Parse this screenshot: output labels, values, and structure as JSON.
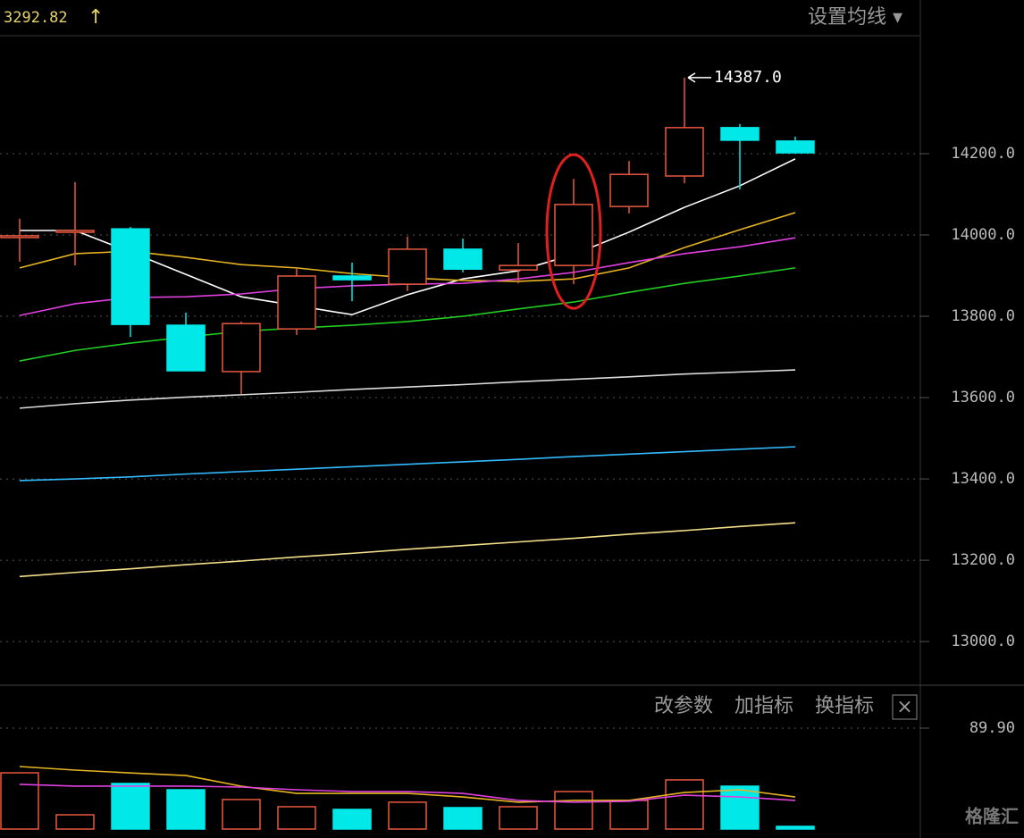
{
  "header": {
    "index_value": "3292.82",
    "arrow": "↑",
    "ma_setting": "设置均线 ▾"
  },
  "toolbar": {
    "edit_params": "改参数",
    "add_indicator": "加指标",
    "switch_indicator": "换指标",
    "close": "×"
  },
  "watermark": "格隆汇",
  "chart_data": [
    {
      "type": "candlestick",
      "ylim": [
        12897,
        14490
      ],
      "yticks": [
        {
          "value": 13000,
          "label": "13000.0"
        },
        {
          "value": 13200,
          "label": "13200.0"
        },
        {
          "value": 13400,
          "label": "13400.0"
        },
        {
          "value": 13600,
          "label": "13600.0"
        },
        {
          "value": 13800,
          "label": "13800.0"
        },
        {
          "value": 14000,
          "label": "14000.0"
        },
        {
          "value": 14200,
          "label": "14200.0"
        }
      ],
      "grid": true,
      "up_color": "#e8583f",
      "down_color": "#00e8e8",
      "open": [
        13994,
        14009,
        14015,
        13778,
        13664,
        13769,
        13899,
        13879,
        13965,
        13914,
        13925,
        14070,
        14145,
        14264,
        14231
      ],
      "high": [
        14040,
        14130,
        14020,
        13809,
        13787,
        13919,
        13932,
        13996,
        13991,
        13980,
        14138,
        14182,
        14387,
        14273,
        14242
      ],
      "low": [
        13934,
        13925,
        13749,
        13666,
        13609,
        13754,
        13837,
        13862,
        13908,
        13881,
        13879,
        14053,
        14127,
        14112,
        14202
      ],
      "close": [
        13998,
        14011,
        13780,
        13666,
        13782,
        13899,
        13890,
        13965,
        13916,
        13925,
        14075,
        14149,
        14264,
        14233,
        14202
      ],
      "annotation": {
        "label": "14387.0",
        "value": 14387
      },
      "series": [
        {
          "color": "#ffffff",
          "values": [
            14011,
            14011,
            13958,
            13903,
            13848,
            13826,
            13804,
            13853,
            13892,
            13912,
            13952,
            14007,
            14068,
            14121,
            14187
          ]
        },
        {
          "color": "#e6b422",
          "values": [
            13919,
            13954,
            13960,
            13945,
            13927,
            13919,
            13905,
            13895,
            13888,
            13886,
            13892,
            13919,
            13969,
            14013,
            14055
          ]
        },
        {
          "color": "#e040e0",
          "values": [
            13802,
            13831,
            13846,
            13848,
            13855,
            13868,
            13875,
            13879,
            13881,
            13892,
            13908,
            13932,
            13954,
            13971,
            13993
          ]
        },
        {
          "color": "#22cc22",
          "values": [
            13690,
            13716,
            13734,
            13749,
            13763,
            13771,
            13778,
            13787,
            13800,
            13818,
            13835,
            13859,
            13881,
            13899,
            13919
          ]
        },
        {
          "color": "#dddddd",
          "values": [
            13574,
            13585,
            13594,
            13601,
            13607,
            13613,
            13620,
            13626,
            13632,
            13639,
            13645,
            13651,
            13658,
            13663,
            13668
          ]
        },
        {
          "color": "#33bbff",
          "values": [
            13396,
            13400,
            13405,
            13412,
            13418,
            13424,
            13430,
            13436,
            13442,
            13448,
            13455,
            13461,
            13467,
            13473,
            13479
          ]
        },
        {
          "color": "#f5e08a",
          "values": [
            13160,
            13170,
            13179,
            13189,
            13198,
            13208,
            13217,
            13227,
            13236,
            13245,
            13254,
            13264,
            13273,
            13283,
            13292
          ]
        }
      ]
    },
    {
      "type": "bar",
      "ylim": [
        0,
        125.7
      ],
      "yticks": [
        {
          "value": 89.9,
          "label": "89.90"
        }
      ],
      "values": [
        50.1,
        12.7,
        40.6,
        35,
        26.3,
        19.9,
        17.5,
        23.9,
        19.1,
        19.9,
        33.4,
        25.5,
        43.8,
        38.2,
        2.4
      ],
      "colors": [
        "#e8583f",
        "#e8583f",
        "#00e8e8",
        "#00e8e8",
        "#e8583f",
        "#e8583f",
        "#00e8e8",
        "#e8583f",
        "#00e8e8",
        "#e8583f",
        "#e8583f",
        "#e8583f",
        "#e8583f",
        "#00e8e8",
        "#00e8e8"
      ],
      "series": [
        {
          "color": "#e6b422",
          "values": [
            55.7,
            52.5,
            50,
            47.7,
            38.2,
            31.8,
            31.8,
            31.8,
            28.6,
            23.9,
            25.5,
            25.5,
            32.6,
            35,
            28.6
          ]
        },
        {
          "color": "#e040e0",
          "values": [
            39.8,
            38.2,
            38.2,
            38.2,
            37.4,
            35,
            33.4,
            33.4,
            31.8,
            25.5,
            23.9,
            24.7,
            30.2,
            28.6,
            25.5
          ]
        }
      ]
    }
  ]
}
